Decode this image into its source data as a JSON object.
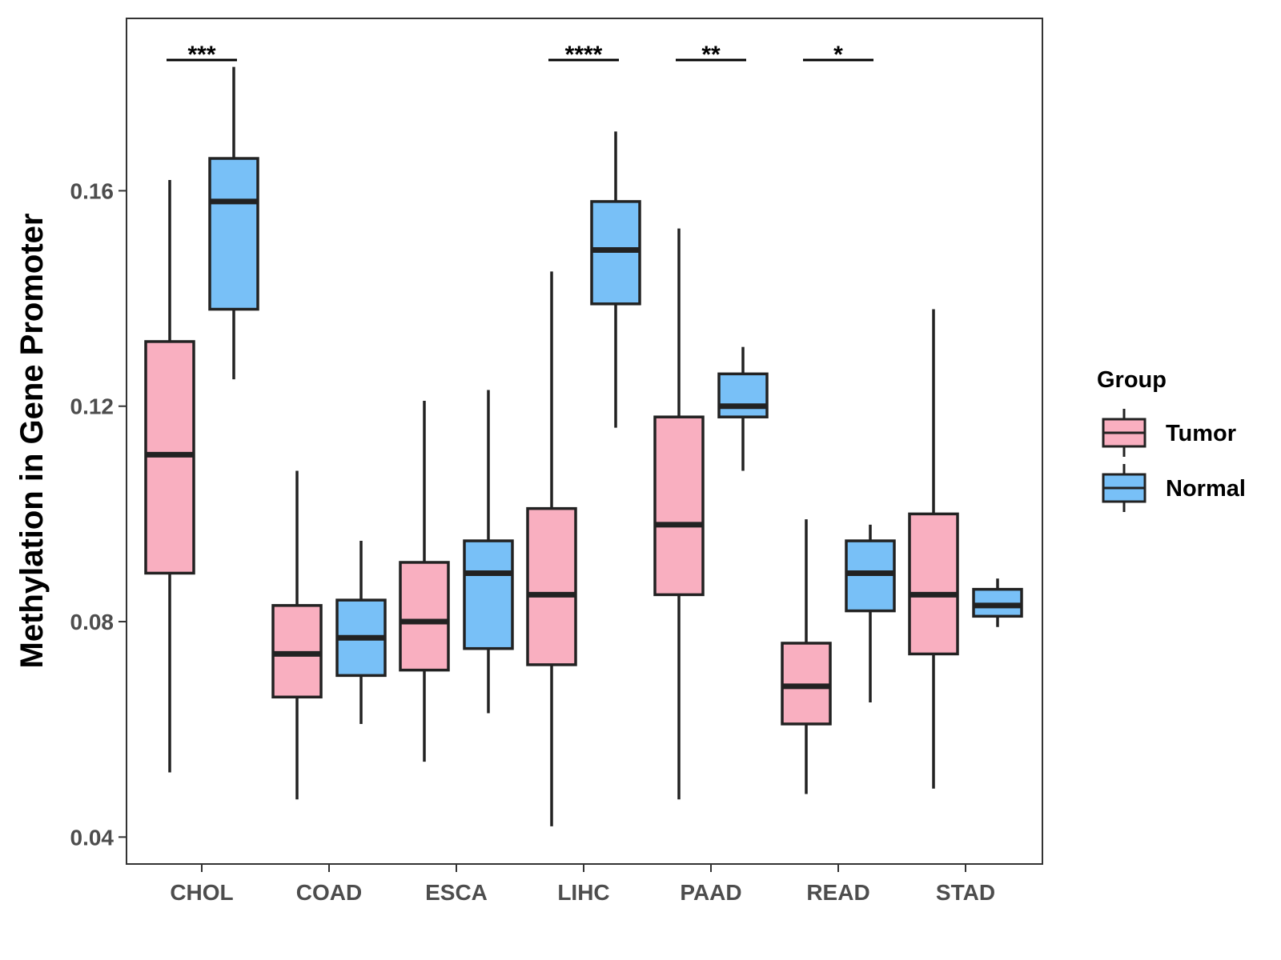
{
  "chart_data": {
    "type": "box",
    "title": "",
    "xlabel": "",
    "ylabel": "Methylation in Gene Promoter",
    "ylim": [
      0.035,
      0.192
    ],
    "yticks": [
      0.04,
      0.08,
      0.12,
      0.16
    ],
    "ytick_labels": [
      "0.04",
      "0.08",
      "0.12",
      "0.16"
    ],
    "categories": [
      "CHOL",
      "COAD",
      "ESCA",
      "LIHC",
      "PAAD",
      "READ",
      "STAD"
    ],
    "legend": {
      "title": "Group",
      "position": "right",
      "entries": [
        {
          "name": "Tumor",
          "color": "#f9afc0"
        },
        {
          "name": "Normal",
          "color": "#78c0f7"
        }
      ]
    },
    "series": [
      {
        "name": "Tumor",
        "color": "#f9afc0",
        "boxes": [
          {
            "category": "CHOL",
            "whisker_low": 0.052,
            "q1": 0.089,
            "median": 0.111,
            "q3": 0.132,
            "whisker_high": 0.162
          },
          {
            "category": "COAD",
            "whisker_low": 0.047,
            "q1": 0.066,
            "median": 0.074,
            "q3": 0.083,
            "whisker_high": 0.108
          },
          {
            "category": "ESCA",
            "whisker_low": 0.054,
            "q1": 0.071,
            "median": 0.08,
            "q3": 0.091,
            "whisker_high": 0.121
          },
          {
            "category": "LIHC",
            "whisker_low": 0.042,
            "q1": 0.072,
            "median": 0.085,
            "q3": 0.101,
            "whisker_high": 0.145
          },
          {
            "category": "PAAD",
            "whisker_low": 0.047,
            "q1": 0.085,
            "median": 0.098,
            "q3": 0.118,
            "whisker_high": 0.153
          },
          {
            "category": "READ",
            "whisker_low": 0.048,
            "q1": 0.061,
            "median": 0.068,
            "q3": 0.076,
            "whisker_high": 0.099
          },
          {
            "category": "STAD",
            "whisker_low": 0.049,
            "q1": 0.074,
            "median": 0.085,
            "q3": 0.1,
            "whisker_high": 0.138
          }
        ]
      },
      {
        "name": "Normal",
        "color": "#78c0f7",
        "boxes": [
          {
            "category": "CHOL",
            "whisker_low": 0.125,
            "q1": 0.138,
            "median": 0.158,
            "q3": 0.166,
            "whisker_high": 0.183
          },
          {
            "category": "COAD",
            "whisker_low": 0.061,
            "q1": 0.07,
            "median": 0.077,
            "q3": 0.084,
            "whisker_high": 0.095
          },
          {
            "category": "ESCA",
            "whisker_low": 0.063,
            "q1": 0.075,
            "median": 0.089,
            "q3": 0.095,
            "whisker_high": 0.123
          },
          {
            "category": "LIHC",
            "whisker_low": 0.116,
            "q1": 0.139,
            "median": 0.149,
            "q3": 0.158,
            "whisker_high": 0.171
          },
          {
            "category": "PAAD",
            "whisker_low": 0.108,
            "q1": 0.118,
            "median": 0.12,
            "q3": 0.126,
            "whisker_high": 0.131
          },
          {
            "category": "READ",
            "whisker_low": 0.065,
            "q1": 0.082,
            "median": 0.089,
            "q3": 0.095,
            "whisker_high": 0.098
          },
          {
            "category": "STAD",
            "whisker_low": 0.079,
            "q1": 0.081,
            "median": 0.083,
            "q3": 0.086,
            "whisker_high": 0.088
          }
        ]
      }
    ],
    "significance": [
      {
        "category": "CHOL",
        "label": "***"
      },
      {
        "category": "LIHC",
        "label": "****"
      },
      {
        "category": "PAAD",
        "label": "**"
      },
      {
        "category": "READ",
        "label": "*"
      }
    ],
    "grid": false
  }
}
